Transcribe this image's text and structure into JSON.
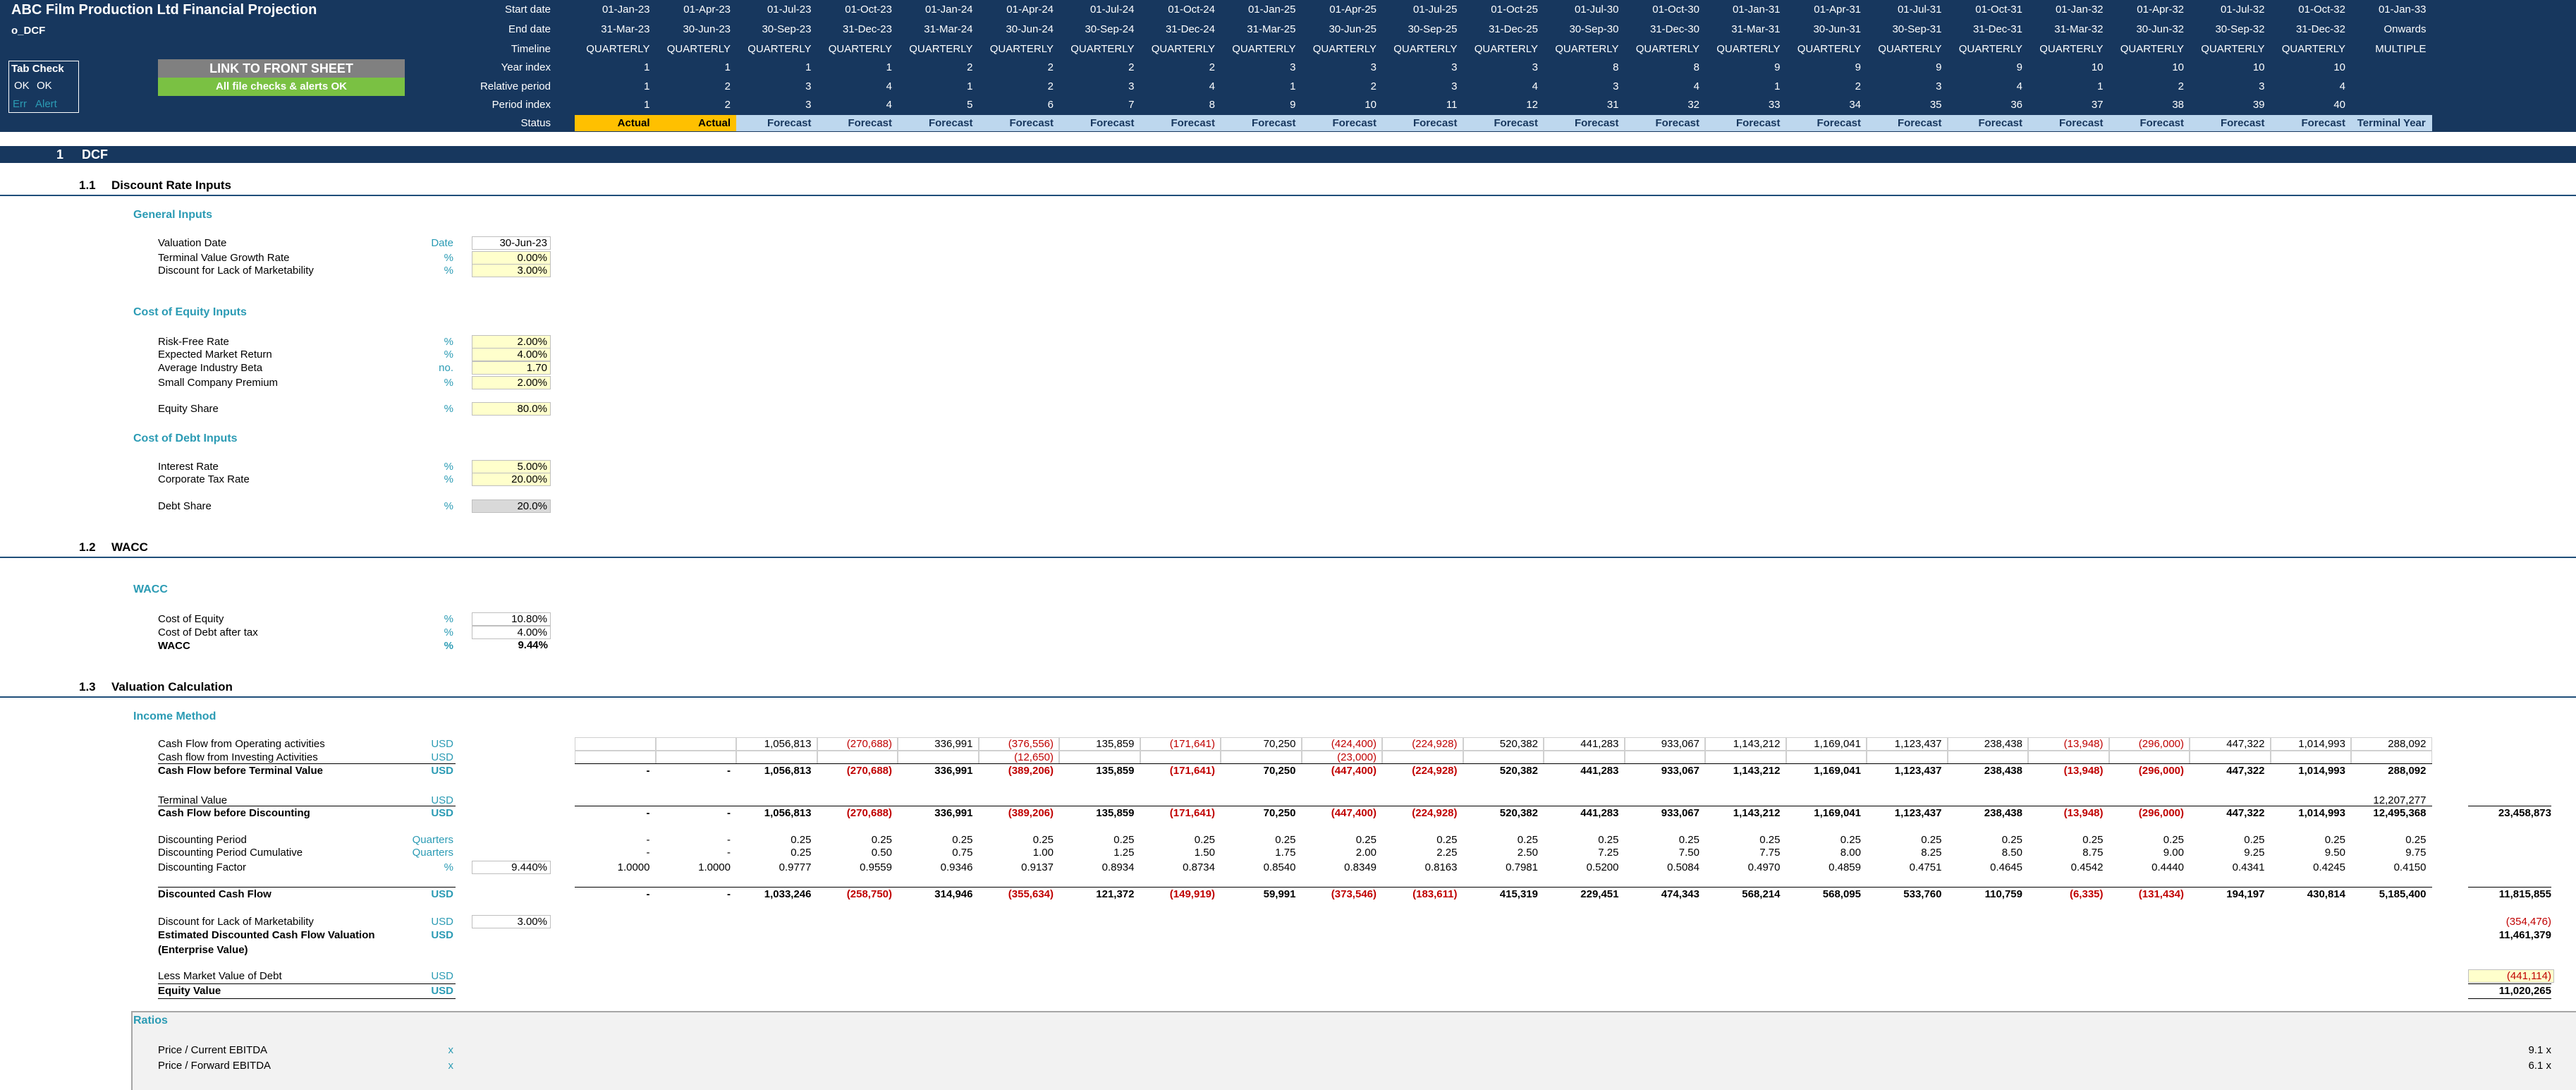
{
  "header": {
    "title": "ABC Film Production Ltd Financial Projection",
    "sheet": "o_DCF",
    "tab_check": {
      "title": "Tab Check",
      "rows": [
        [
          "OK",
          "OK"
        ],
        [
          "Err",
          "Alert"
        ]
      ]
    },
    "link_button": "LINK TO FRONT SHEET",
    "checks_status": "All file checks & alerts OK"
  },
  "timeline": {
    "labels": [
      "Start date",
      "End date",
      "Timeline",
      "Year index",
      "Relative period",
      "Period index",
      "Status"
    ],
    "rows": [
      [
        "01-Jan-23",
        "01-Apr-23",
        "01-Jul-23",
        "01-Oct-23",
        "01-Jan-24",
        "01-Apr-24",
        "01-Jul-24",
        "01-Oct-24",
        "01-Jan-25",
        "01-Apr-25",
        "01-Jul-25",
        "01-Oct-25",
        "01-Jul-30",
        "01-Oct-30",
        "01-Jan-31",
        "01-Apr-31",
        "01-Jul-31",
        "01-Oct-31",
        "01-Jan-32",
        "01-Apr-32",
        "01-Jul-32",
        "01-Oct-32",
        "01-Jan-33"
      ],
      [
        "31-Mar-23",
        "30-Jun-23",
        "30-Sep-23",
        "31-Dec-23",
        "31-Mar-24",
        "30-Jun-24",
        "30-Sep-24",
        "31-Dec-24",
        "31-Mar-25",
        "30-Jun-25",
        "30-Sep-25",
        "31-Dec-25",
        "30-Sep-30",
        "31-Dec-30",
        "31-Mar-31",
        "30-Jun-31",
        "30-Sep-31",
        "31-Dec-31",
        "31-Mar-32",
        "30-Jun-32",
        "30-Sep-32",
        "31-Dec-32",
        "Onwards"
      ],
      [
        "QUARTERLY",
        "QUARTERLY",
        "QUARTERLY",
        "QUARTERLY",
        "QUARTERLY",
        "QUARTERLY",
        "QUARTERLY",
        "QUARTERLY",
        "QUARTERLY",
        "QUARTERLY",
        "QUARTERLY",
        "QUARTERLY",
        "QUARTERLY",
        "QUARTERLY",
        "QUARTERLY",
        "QUARTERLY",
        "QUARTERLY",
        "QUARTERLY",
        "QUARTERLY",
        "QUARTERLY",
        "QUARTERLY",
        "QUARTERLY",
        "MULTIPLE"
      ],
      [
        1,
        1,
        1,
        1,
        2,
        2,
        2,
        2,
        3,
        3,
        3,
        3,
        8,
        8,
        9,
        9,
        9,
        9,
        10,
        10,
        10,
        10,
        null
      ],
      [
        1,
        2,
        3,
        4,
        1,
        2,
        3,
        4,
        1,
        2,
        3,
        4,
        3,
        4,
        1,
        2,
        3,
        4,
        1,
        2,
        3,
        4,
        null
      ],
      [
        1,
        2,
        3,
        4,
        5,
        6,
        7,
        8,
        9,
        10,
        11,
        12,
        31,
        32,
        33,
        34,
        35,
        36,
        37,
        38,
        39,
        40,
        null
      ],
      [
        "Actual",
        "Actual",
        "Forecast",
        "Forecast",
        "Forecast",
        "Forecast",
        "Forecast",
        "Forecast",
        "Forecast",
        "Forecast",
        "Forecast",
        "Forecast",
        "Forecast",
        "Forecast",
        "Forecast",
        "Forecast",
        "Forecast",
        "Forecast",
        "Forecast",
        "Forecast",
        "Forecast",
        "Forecast",
        "Terminal Year"
      ]
    ]
  },
  "section": {
    "number": "1",
    "title": "DCF"
  },
  "discount_rate": {
    "number": "1.1",
    "title": "Discount Rate Inputs",
    "groups": [
      {
        "title": "General Inputs",
        "rows": [
          {
            "label": "Valuation Date",
            "unit": "Date",
            "value": "30-Jun-23"
          },
          {
            "label": "Terminal Value Growth Rate",
            "unit": "%",
            "value": "0.00%"
          },
          {
            "label": "Discount for Lack of Marketability",
            "unit": "%",
            "value": "3.00%"
          }
        ]
      },
      {
        "title": "Cost of Equity Inputs",
        "rows": [
          {
            "label": "Risk-Free Rate",
            "unit": "%",
            "value": "2.00%"
          },
          {
            "label": "Expected Market Return",
            "unit": "%",
            "value": "4.00%"
          },
          {
            "label": "Average Industry Beta",
            "unit": "no.",
            "value": "1.70"
          },
          {
            "label": "Small Company Premium",
            "unit": "%",
            "value": "2.00%"
          },
          {
            "label": "Equity Share",
            "unit": "%",
            "value": "80.0%"
          }
        ]
      },
      {
        "title": "Cost of Debt Inputs",
        "rows": [
          {
            "label": "Interest Rate",
            "unit": "%",
            "value": "5.00%"
          },
          {
            "label": "Corporate Tax Rate",
            "unit": "%",
            "value": "20.00%"
          },
          {
            "label": "Debt Share",
            "unit": "%",
            "value": "20.0%"
          }
        ]
      }
    ]
  },
  "wacc": {
    "number": "1.2",
    "title": "WACC",
    "groups": [
      {
        "title": "WACC",
        "rows": [
          {
            "label": "Cost of Equity",
            "unit": "%",
            "value": "10.80%"
          },
          {
            "label": "Cost of Debt after tax",
            "unit": "%",
            "value": "4.00%"
          },
          {
            "label": "WACC",
            "unit": "%",
            "value": "9.44%"
          }
        ]
      }
    ]
  },
  "valuation": {
    "number": "1.3",
    "title": "Valuation Calculation",
    "method": "Income Method",
    "rows": [
      {
        "label": "Cash Flow from Operating activities",
        "unit": "USD",
        "cells": [
          null,
          null,
          "1,056,813",
          "(270,688)",
          "336,991",
          "(376,556)",
          "135,859",
          "(171,641)",
          "70,250",
          "(424,400)",
          "(224,928)",
          "520,382",
          "441,283",
          "933,067",
          "1,143,212",
          "1,169,041",
          "1,123,437",
          "238,438",
          "(13,948)",
          "(296,000)",
          "447,322",
          "1,014,993",
          "288,092"
        ]
      },
      {
        "label": "Cash flow from Investing Activities",
        "unit": "USD",
        "cells": [
          null,
          null,
          null,
          null,
          null,
          "(12,650)",
          null,
          null,
          null,
          "(23,000)",
          null,
          null,
          null,
          null,
          null,
          null,
          null,
          null,
          null,
          null,
          null,
          null,
          null
        ]
      },
      {
        "label": "Cash Flow before Terminal Value",
        "unit": "USD",
        "cells": [
          "-",
          "-",
          "1,056,813",
          "(270,688)",
          "336,991",
          "(389,206)",
          "135,859",
          "(171,641)",
          "70,250",
          "(447,400)",
          "(224,928)",
          "520,382",
          "441,283",
          "933,067",
          "1,143,212",
          "1,169,041",
          "1,123,437",
          "238,438",
          "(13,948)",
          "(296,000)",
          "447,322",
          "1,014,993",
          "288,092"
        ]
      },
      {
        "label": "Terminal Value",
        "unit": "USD",
        "cells": [
          null,
          null,
          null,
          null,
          null,
          null,
          null,
          null,
          null,
          null,
          null,
          null,
          null,
          null,
          null,
          null,
          null,
          null,
          null,
          null,
          null,
          null,
          "12,207,277"
        ]
      },
      {
        "label": "Cash Flow before Discounting",
        "unit": "USD",
        "cells": [
          "-",
          "-",
          "1,056,813",
          "(270,688)",
          "336,991",
          "(389,206)",
          "135,859",
          "(171,641)",
          "70,250",
          "(447,400)",
          "(224,928)",
          "520,382",
          "441,283",
          "933,067",
          "1,143,212",
          "1,169,041",
          "1,123,437",
          "238,438",
          "(13,948)",
          "(296,000)",
          "447,322",
          "1,014,993",
          "12,495,368"
        ],
        "total": "23,458,873"
      },
      {
        "label": "Discounting Period",
        "unit": "Quarters",
        "cells": [
          "-",
          "-",
          "0.25",
          "0.25",
          "0.25",
          "0.25",
          "0.25",
          "0.25",
          "0.25",
          "0.25",
          "0.25",
          "0.25",
          "0.25",
          "0.25",
          "0.25",
          "0.25",
          "0.25",
          "0.25",
          "0.25",
          "0.25",
          "0.25",
          "0.25",
          "0.25"
        ]
      },
      {
        "label": "Discounting Period Cumulative",
        "unit": "Quarters",
        "cells": [
          "-",
          "-",
          "0.25",
          "0.50",
          "0.75",
          "1.00",
          "1.25",
          "1.50",
          "1.75",
          "2.00",
          "2.25",
          "2.50",
          "7.25",
          "7.50",
          "7.75",
          "8.00",
          "8.25",
          "8.50",
          "8.75",
          "9.00",
          "9.25",
          "9.50",
          "9.75"
        ]
      },
      {
        "label": "Discounting Factor",
        "unit": "%",
        "input": "9.440%",
        "cells": [
          "1.0000",
          "1.0000",
          "0.9777",
          "0.9559",
          "0.9346",
          "0.9137",
          "0.8934",
          "0.8734",
          "0.8540",
          "0.8349",
          "0.8163",
          "0.7981",
          "0.5200",
          "0.5084",
          "0.4970",
          "0.4859",
          "0.4751",
          "0.4645",
          "0.4542",
          "0.4440",
          "0.4341",
          "0.4245",
          "0.4150"
        ]
      },
      {
        "label": "Discounted Cash Flow",
        "unit": "USD",
        "cells": [
          "-",
          "-",
          "1,033,246",
          "(258,750)",
          "314,946",
          "(355,634)",
          "121,372",
          "(149,919)",
          "59,991",
          "(373,546)",
          "(183,611)",
          "415,319",
          "229,451",
          "474,343",
          "568,214",
          "568,095",
          "533,760",
          "110,759",
          "(6,335)",
          "(131,434)",
          "194,197",
          "430,814",
          "5,185,400"
        ],
        "total": "11,815,855"
      },
      {
        "label": "Discount for Lack of Marketability",
        "unit": "USD",
        "input": "3.00%",
        "total": "(354,476)"
      },
      {
        "label": "Estimated Discounted Cash Flow Valuation",
        "label_note": "(Enterprise Value)",
        "unit": "USD",
        "total": "11,461,379"
      },
      {
        "label": "Less Market Value of Debt",
        "unit": "USD",
        "total": "(441,114)"
      },
      {
        "label": "Equity Value",
        "unit": "USD",
        "total": "11,020,265"
      }
    ],
    "ratios": {
      "title": "Ratios",
      "rows": [
        {
          "label": "Price / Current EBITDA",
          "unit": "x",
          "value": "9.1 x"
        },
        {
          "label": "Price / Forward EBITDA",
          "unit": "x",
          "value": "6.1 x"
        }
      ]
    }
  }
}
